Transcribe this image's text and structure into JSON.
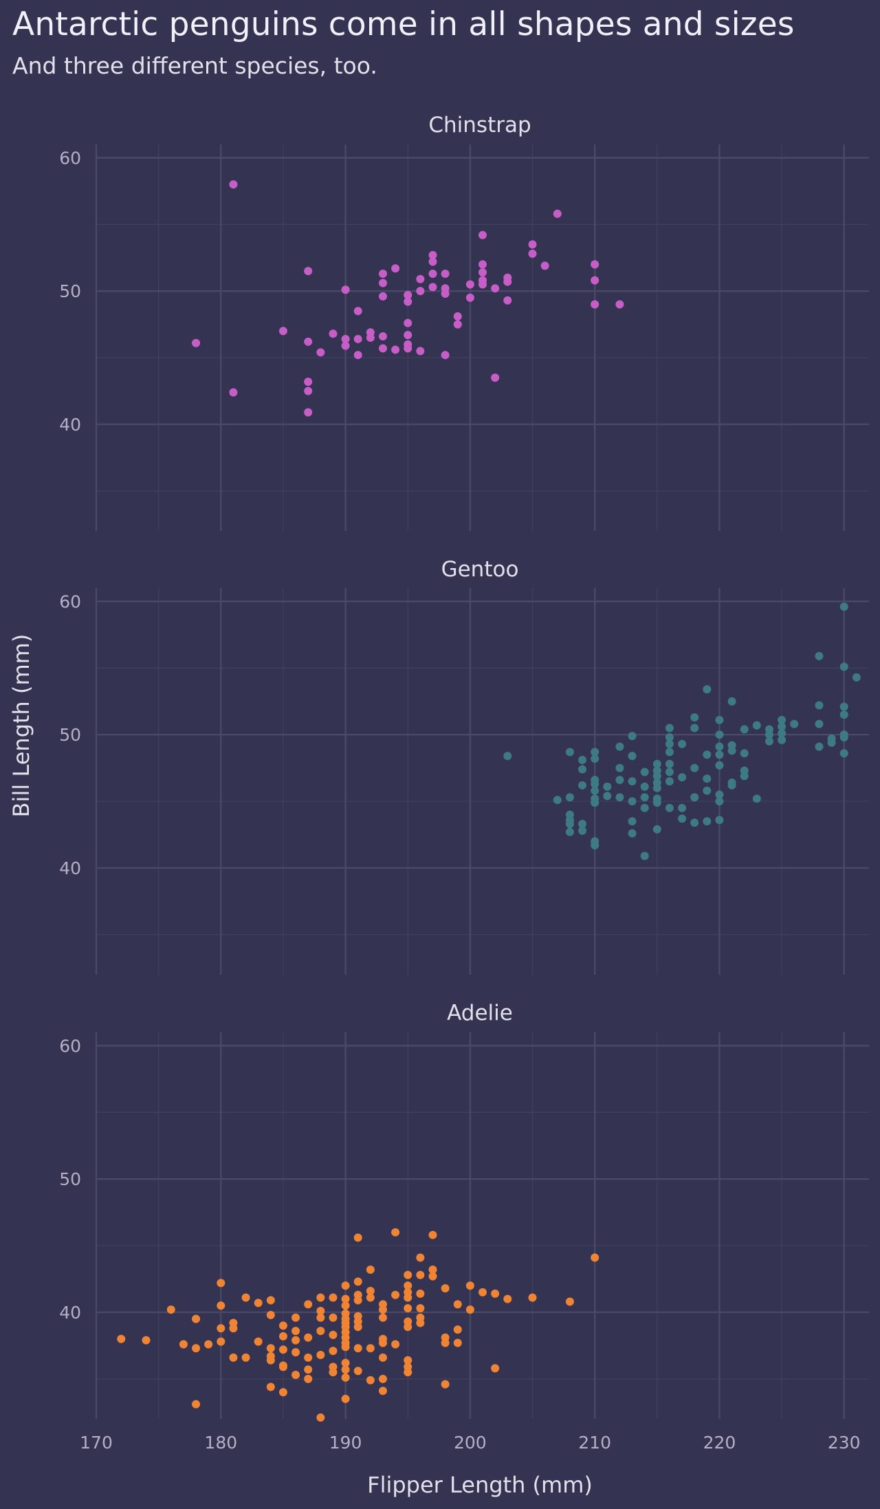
{
  "title": "Antarctic penguins come in all shapes and sizes",
  "subtitle": "And three different species, too.",
  "chart_data": {
    "type": "scatter",
    "xlabel": "Flipper Length (mm)",
    "ylabel": "Bill Length (mm)",
    "xlim": [
      170,
      232
    ],
    "ylim": [
      32,
      61
    ],
    "xticks": [
      170,
      180,
      190,
      200,
      210,
      220,
      230
    ],
    "yticks": [
      40,
      50,
      60
    ],
    "grid": true,
    "background": "#343452",
    "gridColor": "#42425f",
    "panels": [
      {
        "name": "Chinstrap",
        "color": "#c75ec8",
        "points": [
          [
            178,
            46.1
          ],
          [
            181,
            42.4
          ],
          [
            181,
            58.0
          ],
          [
            185,
            47.0
          ],
          [
            187,
            51.5
          ],
          [
            187,
            46.2
          ],
          [
            187,
            43.2
          ],
          [
            187,
            42.5
          ],
          [
            187,
            40.9
          ],
          [
            188,
            45.4
          ],
          [
            189,
            46.8
          ],
          [
            190,
            46.4
          ],
          [
            190,
            45.9
          ],
          [
            190,
            50.1
          ],
          [
            191,
            46.4
          ],
          [
            191,
            45.2
          ],
          [
            191,
            48.5
          ],
          [
            192,
            46.9
          ],
          [
            192,
            46.5
          ],
          [
            193,
            51.3
          ],
          [
            193,
            50.6
          ],
          [
            193,
            49.6
          ],
          [
            193,
            46.6
          ],
          [
            193,
            45.7
          ],
          [
            194,
            51.7
          ],
          [
            194,
            45.6
          ],
          [
            195,
            49.7
          ],
          [
            195,
            49.2
          ],
          [
            195,
            47.6
          ],
          [
            195,
            46.7
          ],
          [
            195,
            46.0
          ],
          [
            195,
            45.7
          ],
          [
            196,
            50.9
          ],
          [
            196,
            50.0
          ],
          [
            196,
            45.5
          ],
          [
            197,
            52.7
          ],
          [
            197,
            52.2
          ],
          [
            197,
            51.3
          ],
          [
            197,
            50.3
          ],
          [
            198,
            51.3
          ],
          [
            198,
            50.2
          ],
          [
            198,
            49.8
          ],
          [
            198,
            45.2
          ],
          [
            199,
            48.1
          ],
          [
            199,
            47.5
          ],
          [
            200,
            50.5
          ],
          [
            200,
            49.5
          ],
          [
            201,
            54.2
          ],
          [
            201,
            52.0
          ],
          [
            201,
            51.4
          ],
          [
            201,
            50.8
          ],
          [
            201,
            50.5
          ],
          [
            202,
            50.2
          ],
          [
            202,
            43.5
          ],
          [
            203,
            51.0
          ],
          [
            203,
            50.7
          ],
          [
            203,
            49.3
          ],
          [
            205,
            53.5
          ],
          [
            205,
            52.8
          ],
          [
            206,
            51.9
          ],
          [
            207,
            55.8
          ],
          [
            210,
            52.0
          ],
          [
            210,
            50.8
          ],
          [
            210,
            49.0
          ],
          [
            212,
            49.0
          ]
        ]
      },
      {
        "name": "Gentoo",
        "color": "#3d7a83",
        "points": [
          [
            203,
            48.4
          ],
          [
            207,
            45.1
          ],
          [
            208,
            48.7
          ],
          [
            208,
            45.3
          ],
          [
            208,
            44.0
          ],
          [
            208,
            43.6
          ],
          [
            208,
            43.3
          ],
          [
            208,
            42.7
          ],
          [
            209,
            48.1
          ],
          [
            209,
            47.4
          ],
          [
            209,
            46.2
          ],
          [
            209,
            43.3
          ],
          [
            209,
            42.8
          ],
          [
            210,
            48.7
          ],
          [
            210,
            48.2
          ],
          [
            210,
            46.6
          ],
          [
            210,
            46.3
          ],
          [
            210,
            45.8
          ],
          [
            210,
            45.2
          ],
          [
            210,
            44.9
          ],
          [
            210,
            42.0
          ],
          [
            210,
            41.7
          ],
          [
            211,
            46.1
          ],
          [
            211,
            45.4
          ],
          [
            212,
            49.1
          ],
          [
            212,
            47.5
          ],
          [
            212,
            46.6
          ],
          [
            212,
            45.3
          ],
          [
            213,
            49.9
          ],
          [
            213,
            48.4
          ],
          [
            213,
            46.5
          ],
          [
            213,
            45.0
          ],
          [
            213,
            43.5
          ],
          [
            213,
            42.6
          ],
          [
            214,
            47.2
          ],
          [
            214,
            46.1
          ],
          [
            214,
            45.3
          ],
          [
            214,
            44.5
          ],
          [
            214,
            40.9
          ],
          [
            215,
            47.8
          ],
          [
            215,
            47.3
          ],
          [
            215,
            46.9
          ],
          [
            215,
            46.4
          ],
          [
            215,
            46.0
          ],
          [
            215,
            45.2
          ],
          [
            215,
            44.9
          ],
          [
            215,
            42.9
          ],
          [
            216,
            50.5
          ],
          [
            216,
            49.8
          ],
          [
            216,
            49.3
          ],
          [
            216,
            48.7
          ],
          [
            216,
            47.8
          ],
          [
            216,
            47.2
          ],
          [
            216,
            46.5
          ],
          [
            216,
            44.5
          ],
          [
            217,
            49.3
          ],
          [
            217,
            46.8
          ],
          [
            217,
            44.5
          ],
          [
            217,
            43.7
          ],
          [
            218,
            51.3
          ],
          [
            218,
            50.5
          ],
          [
            218,
            47.5
          ],
          [
            218,
            45.3
          ],
          [
            218,
            43.4
          ],
          [
            219,
            53.4
          ],
          [
            219,
            48.5
          ],
          [
            219,
            46.7
          ],
          [
            219,
            45.8
          ],
          [
            219,
            43.5
          ],
          [
            220,
            51.1
          ],
          [
            220,
            50.0
          ],
          [
            220,
            49.1
          ],
          [
            220,
            48.5
          ],
          [
            220,
            47.7
          ],
          [
            220,
            45.5
          ],
          [
            220,
            45.0
          ],
          [
            220,
            43.6
          ],
          [
            221,
            52.5
          ],
          [
            221,
            49.2
          ],
          [
            221,
            48.8
          ],
          [
            221,
            46.4
          ],
          [
            221,
            46.2
          ],
          [
            222,
            50.4
          ],
          [
            222,
            48.6
          ],
          [
            222,
            47.3
          ],
          [
            222,
            46.9
          ],
          [
            223,
            50.7
          ],
          [
            223,
            45.2
          ],
          [
            224,
            50.4
          ],
          [
            224,
            50.0
          ],
          [
            224,
            49.5
          ],
          [
            225,
            51.1
          ],
          [
            225,
            50.6
          ],
          [
            225,
            50.1
          ],
          [
            225,
            49.6
          ],
          [
            226,
            50.8
          ],
          [
            228,
            55.9
          ],
          [
            228,
            52.2
          ],
          [
            228,
            50.8
          ],
          [
            228,
            49.1
          ],
          [
            229,
            49.7
          ],
          [
            229,
            49.4
          ],
          [
            230,
            59.6
          ],
          [
            230,
            55.1
          ],
          [
            230,
            52.1
          ],
          [
            230,
            51.5
          ],
          [
            230,
            50.0
          ],
          [
            230,
            49.8
          ],
          [
            230,
            48.6
          ],
          [
            231,
            54.3
          ]
        ]
      },
      {
        "name": "Adelie",
        "color": "#ef8434",
        "points": [
          [
            172,
            38.0
          ],
          [
            174,
            37.9
          ],
          [
            176,
            40.2
          ],
          [
            177,
            37.6
          ],
          [
            178,
            39.5
          ],
          [
            178,
            37.3
          ],
          [
            178,
            33.1
          ],
          [
            179,
            37.6
          ],
          [
            180,
            42.2
          ],
          [
            180,
            40.5
          ],
          [
            180,
            38.8
          ],
          [
            180,
            37.8
          ],
          [
            181,
            39.2
          ],
          [
            181,
            38.8
          ],
          [
            181,
            36.6
          ],
          [
            182,
            41.1
          ],
          [
            182,
            36.6
          ],
          [
            183,
            40.7
          ],
          [
            183,
            37.8
          ],
          [
            184,
            40.9
          ],
          [
            184,
            39.8
          ],
          [
            184,
            37.3
          ],
          [
            184,
            36.7
          ],
          [
            184,
            36.4
          ],
          [
            184,
            34.4
          ],
          [
            185,
            39.0
          ],
          [
            185,
            38.2
          ],
          [
            185,
            37.2
          ],
          [
            185,
            36.0
          ],
          [
            185,
            35.9
          ],
          [
            185,
            34.0
          ],
          [
            186,
            39.6
          ],
          [
            186,
            38.6
          ],
          [
            186,
            37.9
          ],
          [
            186,
            37.0
          ],
          [
            186,
            35.3
          ],
          [
            187,
            40.6
          ],
          [
            187,
            38.1
          ],
          [
            187,
            36.6
          ],
          [
            187,
            35.7
          ],
          [
            187,
            35.0
          ],
          [
            188,
            41.1
          ],
          [
            188,
            40.1
          ],
          [
            188,
            39.6
          ],
          [
            188,
            38.6
          ],
          [
            188,
            36.8
          ],
          [
            188,
            32.1
          ],
          [
            189,
            41.1
          ],
          [
            189,
            39.6
          ],
          [
            189,
            38.3
          ],
          [
            189,
            37.1
          ],
          [
            189,
            35.9
          ],
          [
            189,
            35.5
          ],
          [
            190,
            42.0
          ],
          [
            190,
            41.0
          ],
          [
            190,
            40.5
          ],
          [
            190,
            39.9
          ],
          [
            190,
            39.5
          ],
          [
            190,
            39.2
          ],
          [
            190,
            38.9
          ],
          [
            190,
            38.5
          ],
          [
            190,
            38.1
          ],
          [
            190,
            37.7
          ],
          [
            190,
            37.4
          ],
          [
            190,
            36.2
          ],
          [
            190,
            35.7
          ],
          [
            190,
            35.1
          ],
          [
            190,
            33.5
          ],
          [
            191,
            45.6
          ],
          [
            191,
            42.3
          ],
          [
            191,
            41.3
          ],
          [
            191,
            40.9
          ],
          [
            191,
            39.7
          ],
          [
            191,
            39.3
          ],
          [
            191,
            38.9
          ],
          [
            191,
            37.3
          ],
          [
            191,
            35.6
          ],
          [
            192,
            43.2
          ],
          [
            192,
            41.6
          ],
          [
            192,
            41.1
          ],
          [
            192,
            37.3
          ],
          [
            192,
            34.9
          ],
          [
            193,
            40.6
          ],
          [
            193,
            40.2
          ],
          [
            193,
            39.6
          ],
          [
            193,
            38.0
          ],
          [
            193,
            37.7
          ],
          [
            193,
            36.6
          ],
          [
            193,
            35.0
          ],
          [
            193,
            34.1
          ],
          [
            194,
            46.0
          ],
          [
            194,
            41.3
          ],
          [
            194,
            37.6
          ],
          [
            195,
            42.8
          ],
          [
            195,
            42.0
          ],
          [
            195,
            41.5
          ],
          [
            195,
            41.1
          ],
          [
            195,
            40.3
          ],
          [
            195,
            39.3
          ],
          [
            195,
            38.9
          ],
          [
            195,
            36.4
          ],
          [
            195,
            35.9
          ],
          [
            195,
            35.5
          ],
          [
            196,
            44.1
          ],
          [
            196,
            42.8
          ],
          [
            196,
            41.4
          ],
          [
            196,
            40.3
          ],
          [
            196,
            39.6
          ],
          [
            196,
            39.2
          ],
          [
            197,
            45.8
          ],
          [
            197,
            43.2
          ],
          [
            197,
            42.7
          ],
          [
            198,
            41.8
          ],
          [
            198,
            38.1
          ],
          [
            198,
            37.7
          ],
          [
            198,
            34.6
          ],
          [
            199,
            40.6
          ],
          [
            199,
            38.7
          ],
          [
            199,
            37.7
          ],
          [
            200,
            42.0
          ],
          [
            200,
            40.2
          ],
          [
            201,
            41.5
          ],
          [
            202,
            41.4
          ],
          [
            202,
            35.8
          ],
          [
            203,
            41.0
          ],
          [
            205,
            41.1
          ],
          [
            208,
            40.8
          ],
          [
            210,
            44.1
          ]
        ]
      }
    ]
  }
}
